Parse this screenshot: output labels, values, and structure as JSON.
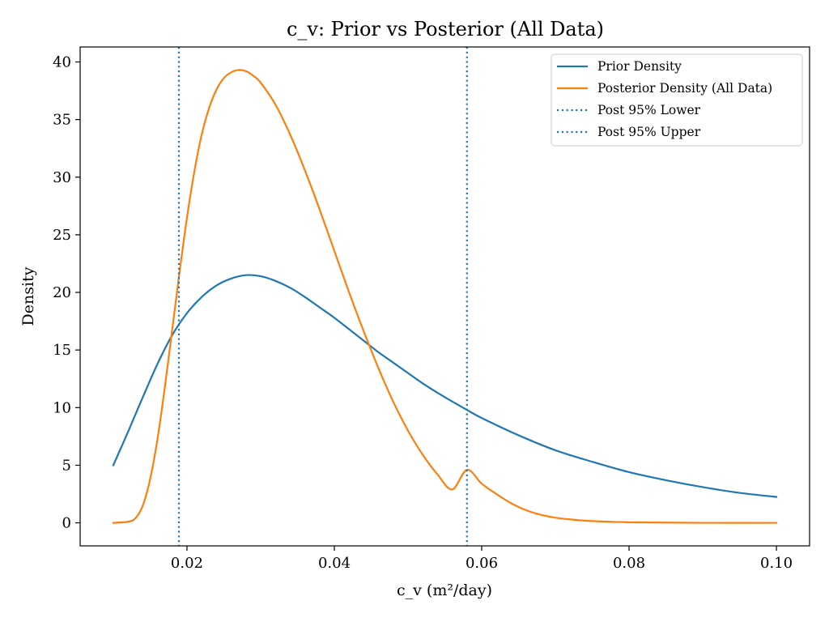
{
  "chart_data": {
    "type": "line",
    "title": "c_v: Prior vs Posterior (All Data)",
    "xlabel": "c_v (m²/day)",
    "ylabel": "Density",
    "xlim": [
      0.0055,
      0.1045
    ],
    "ylim": [
      -2,
      41.3
    ],
    "xticks": [
      0.02,
      0.04,
      0.06,
      0.08,
      0.1
    ],
    "xtick_labels": [
      "0.02",
      "0.04",
      "0.06",
      "0.08",
      "0.10"
    ],
    "yticks": [
      0,
      5,
      10,
      15,
      20,
      25,
      30,
      35,
      40
    ],
    "ytick_labels": [
      "0",
      "5",
      "10",
      "15",
      "20",
      "25",
      "30",
      "35",
      "40"
    ],
    "grid": false,
    "legend_position": "top-right",
    "colors": {
      "prior": "#1f77b4",
      "posterior": "#ff7f0e",
      "ci": "#1f77b4"
    },
    "series": [
      {
        "name": "Prior Density",
        "style": "solid",
        "color": "#1f77b4",
        "x": [
          0.01,
          0.012,
          0.014,
          0.016,
          0.018,
          0.02,
          0.022,
          0.024,
          0.026,
          0.028,
          0.03,
          0.032,
          0.034,
          0.036,
          0.038,
          0.04,
          0.042,
          0.044,
          0.046,
          0.048,
          0.05,
          0.052,
          0.055,
          0.058,
          0.06,
          0.065,
          0.07,
          0.075,
          0.08,
          0.085,
          0.09,
          0.095,
          0.1
        ],
        "y": [
          5.0,
          7.9,
          10.9,
          13.8,
          16.3,
          18.2,
          19.6,
          20.6,
          21.2,
          21.5,
          21.4,
          21.0,
          20.4,
          19.6,
          18.7,
          17.8,
          16.8,
          15.8,
          14.8,
          13.9,
          13.0,
          12.1,
          10.9,
          9.8,
          9.1,
          7.6,
          6.3,
          5.3,
          4.4,
          3.7,
          3.1,
          2.6,
          2.25
        ]
      },
      {
        "name": "Posterior Density (All Data)",
        "style": "solid",
        "color": "#ff7f0e",
        "x": [
          0.01,
          0.012,
          0.013,
          0.014,
          0.015,
          0.016,
          0.017,
          0.018,
          0.019,
          0.02,
          0.021,
          0.022,
          0.023,
          0.024,
          0.025,
          0.026,
          0.027,
          0.028,
          0.029,
          0.03,
          0.032,
          0.034,
          0.036,
          0.038,
          0.04,
          0.042,
          0.044,
          0.046,
          0.048,
          0.05,
          0.052,
          0.054,
          0.056,
          0.058,
          0.06,
          0.062,
          0.064,
          0.066,
          0.068,
          0.07,
          0.072,
          0.075,
          0.08,
          0.09,
          0.1
        ],
        "y": [
          0.0,
          0.1,
          0.4,
          1.5,
          3.8,
          7.3,
          11.8,
          16.8,
          21.8,
          26.5,
          30.5,
          33.7,
          36.0,
          37.6,
          38.6,
          39.1,
          39.3,
          39.2,
          38.8,
          38.2,
          36.3,
          33.7,
          30.6,
          27.2,
          23.6,
          20.0,
          16.6,
          13.4,
          10.5,
          8.0,
          5.9,
          4.2,
          2.9,
          4.6,
          3.4,
          2.5,
          1.7,
          1.1,
          0.7,
          0.45,
          0.3,
          0.15,
          0.05,
          0.0,
          0.0
        ]
      }
    ],
    "vlines": [
      {
        "name": "Post 95% Lower",
        "x": 0.0189,
        "style": "dotted",
        "color": "#1f77b4"
      },
      {
        "name": "Post 95% Upper",
        "x": 0.058,
        "style": "dotted",
        "color": "#1f77b4"
      }
    ],
    "legend": [
      {
        "label": "Prior Density",
        "color": "#1f77b4",
        "style": "solid"
      },
      {
        "label": "Posterior Density (All Data)",
        "color": "#ff7f0e",
        "style": "solid"
      },
      {
        "label": "Post 95% Lower",
        "color": "#1f77b4",
        "style": "dotted"
      },
      {
        "label": "Post 95% Upper",
        "color": "#1f77b4",
        "style": "dotted"
      }
    ]
  }
}
